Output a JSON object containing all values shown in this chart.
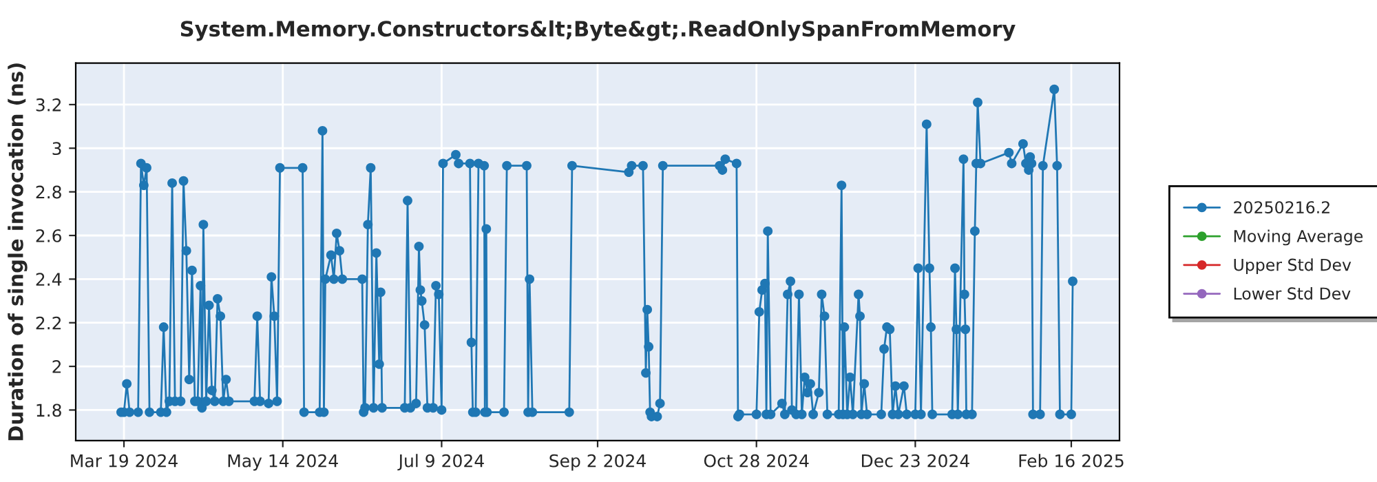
{
  "chart_data": {
    "type": "line",
    "title": "System.Memory.Constructors&lt;Byte&gt;.ReadOnlySpanFromMemory",
    "ylabel": "Duration of single invocation (ns)",
    "xlim": [
      "2024-03-02",
      "2025-03-05"
    ],
    "xticks": [
      {
        "value": "2024-03-19",
        "label": "Mar 19 2024"
      },
      {
        "value": "2024-05-14",
        "label": "May 14 2024"
      },
      {
        "value": "2024-07-09",
        "label": "Jul 9 2024"
      },
      {
        "value": "2024-09-02",
        "label": "Sep 2 2024"
      },
      {
        "value": "2024-10-28",
        "label": "Oct 28 2024"
      },
      {
        "value": "2024-12-23",
        "label": "Dec 23 2024"
      },
      {
        "value": "2025-02-16",
        "label": "Feb 16 2025"
      }
    ],
    "ylim": [
      1.66,
      3.39
    ],
    "yticks": [
      1.8,
      2,
      2.2,
      2.4,
      2.6,
      2.8,
      3,
      3.2
    ],
    "grid": true,
    "legend": "right",
    "marker": "circle",
    "line_style": "solid",
    "series": [
      {
        "name": "20250216.2",
        "color": "#1f77b4",
        "x": [
          "2024-03-18",
          "2024-03-19",
          "2024-03-20",
          "2024-03-21",
          "2024-03-24",
          "2024-03-25",
          "2024-03-26",
          "2024-03-27",
          "2024-03-28",
          "2024-04-01",
          "2024-04-02",
          "2024-04-03",
          "2024-04-04",
          "2024-04-05",
          "2024-04-06",
          "2024-04-08",
          "2024-04-09",
          "2024-04-10",
          "2024-04-11",
          "2024-04-12",
          "2024-04-13",
          "2024-04-14",
          "2024-04-15",
          "2024-04-15T12:00",
          "2024-04-16",
          "2024-04-17",
          "2024-04-18",
          "2024-04-19",
          "2024-04-20",
          "2024-04-21",
          "2024-04-22",
          "2024-04-23",
          "2024-04-24",
          "2024-04-25",
          "2024-05-04",
          "2024-05-05",
          "2024-05-06",
          "2024-05-09",
          "2024-05-10",
          "2024-05-11",
          "2024-05-12",
          "2024-05-13",
          "2024-05-21",
          "2024-05-21T12:00",
          "2024-05-27",
          "2024-05-28",
          "2024-05-28T12:00",
          "2024-05-29",
          "2024-05-31",
          "2024-06-01",
          "2024-06-02",
          "2024-06-03",
          "2024-06-04",
          "2024-06-11",
          "2024-06-11T12:00",
          "2024-06-12",
          "2024-06-13",
          "2024-06-14",
          "2024-06-15",
          "2024-06-16",
          "2024-06-17",
          "2024-06-17T12:00",
          "2024-06-18",
          "2024-06-26",
          "2024-06-27",
          "2024-06-28",
          "2024-06-30",
          "2024-07-01",
          "2024-07-01T12:00",
          "2024-07-02",
          "2024-07-03",
          "2024-07-04",
          "2024-07-06",
          "2024-07-07",
          "2024-07-08",
          "2024-07-09",
          "2024-07-09T12:00",
          "2024-07-14",
          "2024-07-15",
          "2024-07-19",
          "2024-07-19T12:00",
          "2024-07-20",
          "2024-07-21",
          "2024-07-22",
          "2024-07-24",
          "2024-07-24T06:00",
          "2024-07-24T18:00",
          "2024-07-25",
          "2024-07-31",
          "2024-08-01",
          "2024-08-08",
          "2024-08-08T12:00",
          "2024-08-09",
          "2024-08-10",
          "2024-08-23",
          "2024-08-24",
          "2024-09-13",
          "2024-09-14",
          "2024-09-18",
          "2024-09-19",
          "2024-09-19T12:00",
          "2024-09-20",
          "2024-09-20T12:00",
          "2024-09-21",
          "2024-09-23",
          "2024-09-24",
          "2024-09-25",
          "2024-10-15",
          "2024-10-16",
          "2024-10-17",
          "2024-10-21",
          "2024-10-21T12:00",
          "2024-10-22",
          "2024-10-28",
          "2024-10-29",
          "2024-10-30",
          "2024-10-31",
          "2024-10-31T12:00",
          "2024-11-01",
          "2024-11-02",
          "2024-11-06",
          "2024-11-07",
          "2024-11-08",
          "2024-11-09",
          "2024-11-09T12:00",
          "2024-11-11",
          "2024-11-12",
          "2024-11-13",
          "2024-11-14",
          "2024-11-15",
          "2024-11-16",
          "2024-11-17",
          "2024-11-19",
          "2024-11-20",
          "2024-11-21",
          "2024-11-22",
          "2024-11-26",
          "2024-11-27",
          "2024-11-27T12:00",
          "2024-11-28",
          "2024-11-29",
          "2024-11-30",
          "2024-12-01",
          "2024-12-03",
          "2024-12-03T12:00",
          "2024-12-04",
          "2024-12-05",
          "2024-12-06",
          "2024-12-11",
          "2024-12-12",
          "2024-12-13",
          "2024-12-14",
          "2024-12-15",
          "2024-12-16",
          "2024-12-17",
          "2024-12-19",
          "2024-12-20",
          "2024-12-23",
          "2024-12-24",
          "2024-12-25",
          "2024-12-27",
          "2024-12-28",
          "2024-12-28T12:00",
          "2024-12-29",
          "2025-01-05",
          "2025-01-06",
          "2025-01-06T12:00",
          "2025-01-07",
          "2025-01-09",
          "2025-01-09T08:00",
          "2025-01-09T16:00",
          "2025-01-10",
          "2025-01-12",
          "2025-01-13",
          "2025-01-13T12:00",
          "2025-01-14",
          "2025-01-15",
          "2025-01-25",
          "2025-01-26",
          "2025-01-30",
          "2025-01-31",
          "2025-02-01",
          "2025-02-01T12:00",
          "2025-02-02",
          "2025-02-02T12:00",
          "2025-02-05",
          "2025-02-06",
          "2025-02-10",
          "2025-02-11",
          "2025-02-12",
          "2025-02-16",
          "2025-02-16T12:00"
        ],
        "values": [
          1.79,
          1.79,
          1.92,
          1.79,
          1.79,
          2.93,
          2.83,
          2.91,
          1.79,
          1.79,
          2.18,
          1.79,
          1.84,
          2.84,
          1.84,
          1.84,
          2.85,
          2.53,
          1.94,
          2.44,
          1.84,
          1.84,
          2.37,
          1.81,
          2.65,
          1.84,
          2.28,
          1.89,
          1.84,
          2.31,
          2.23,
          1.84,
          1.94,
          1.84,
          1.84,
          2.23,
          1.84,
          1.83,
          2.41,
          2.23,
          1.84,
          2.91,
          2.91,
          1.79,
          1.79,
          3.08,
          1.79,
          2.4,
          2.51,
          2.4,
          2.61,
          2.53,
          2.4,
          2.4,
          1.79,
          1.81,
          2.65,
          2.91,
          1.81,
          2.52,
          2.01,
          2.34,
          1.81,
          1.81,
          2.76,
          1.81,
          1.83,
          2.55,
          2.35,
          2.3,
          2.19,
          1.81,
          1.81,
          2.37,
          2.33,
          1.8,
          2.93,
          2.97,
          2.93,
          2.93,
          2.11,
          1.79,
          1.79,
          2.93,
          2.92,
          1.79,
          2.63,
          1.79,
          1.79,
          2.92,
          2.92,
          1.79,
          2.4,
          1.79,
          1.79,
          2.92,
          2.89,
          2.92,
          2.92,
          1.97,
          2.26,
          2.09,
          1.79,
          1.77,
          1.77,
          1.83,
          2.92,
          2.92,
          2.9,
          2.95,
          2.93,
          1.77,
          1.78,
          1.78,
          2.25,
          2.35,
          2.38,
          1.78,
          2.62,
          1.78,
          1.83,
          1.78,
          2.33,
          2.39,
          1.8,
          1.78,
          2.33,
          1.78,
          1.95,
          1.88,
          1.92,
          1.78,
          1.88,
          2.33,
          2.23,
          1.78,
          1.78,
          2.83,
          1.78,
          2.18,
          1.78,
          1.95,
          1.78,
          2.33,
          2.23,
          1.78,
          1.92,
          1.78,
          1.78,
          2.08,
          2.18,
          2.17,
          1.78,
          1.91,
          1.78,
          1.91,
          1.78,
          1.78,
          2.45,
          1.78,
          3.11,
          2.45,
          2.18,
          1.78,
          1.78,
          2.45,
          2.17,
          1.78,
          2.95,
          2.33,
          2.17,
          1.78,
          1.78,
          2.62,
          2.93,
          3.21,
          2.93,
          2.98,
          2.93,
          3.02,
          2.93,
          2.9,
          2.96,
          2.93,
          1.78,
          1.78,
          2.92,
          3.27,
          2.92,
          1.78,
          1.78,
          2.39
        ]
      },
      {
        "name": "Moving Average",
        "color": "#2ca02c"
      },
      {
        "name": "Upper Std Dev",
        "color": "#d62728"
      },
      {
        "name": "Lower Std Dev",
        "color": "#9467bd"
      }
    ]
  }
}
